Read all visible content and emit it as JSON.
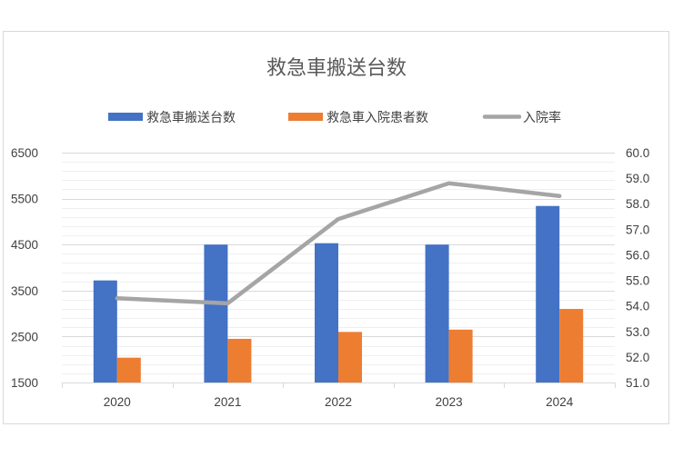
{
  "chart_data": {
    "type": "bar",
    "title": "救急車搬送台数",
    "categories": [
      "2020",
      "2021",
      "2022",
      "2023",
      "2024"
    ],
    "series": [
      {
        "name": "救急車搬送台数",
        "type": "bar",
        "axis": "left",
        "color": "#4472c4",
        "values": [
          3720,
          4500,
          4530,
          4500,
          5340
        ]
      },
      {
        "name": "救急車入院患者数",
        "type": "bar",
        "axis": "left",
        "color": "#ed7d31",
        "values": [
          2040,
          2450,
          2600,
          2650,
          3100
        ]
      },
      {
        "name": "入院率",
        "type": "line",
        "axis": "right",
        "color": "#a5a5a5",
        "values": [
          54.3,
          54.1,
          57.4,
          58.8,
          58.3
        ]
      }
    ],
    "y_left": {
      "min": 1500,
      "max": 6500,
      "major_step": 1000,
      "ticks": [
        "1500",
        "2500",
        "3500",
        "4500",
        "5500",
        "6500"
      ]
    },
    "y_right": {
      "min": 51.0,
      "max": 60.0,
      "major_step": 1.0,
      "ticks": [
        "51.0",
        "52.0",
        "53.0",
        "54.0",
        "55.0",
        "56.0",
        "57.0",
        "58.0",
        "59.0",
        "60.0"
      ]
    },
    "grid": true,
    "legend_position": "top"
  }
}
